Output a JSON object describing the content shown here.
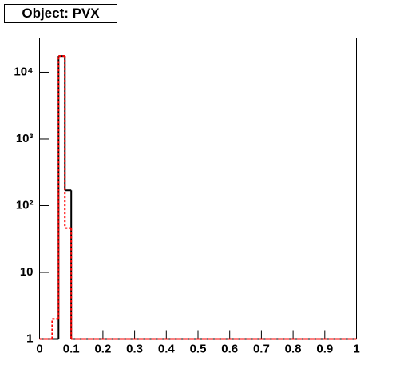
{
  "chart_data": {
    "type": "histogram",
    "title": "Object: PVX",
    "bins": [
      0,
      0.02,
      0.04,
      0.06,
      0.08,
      0.1,
      0.12,
      0.14,
      0.16,
      0.18,
      0.2,
      0.22,
      0.24,
      0.26,
      0.28,
      0.3,
      0.32,
      0.34,
      0.36,
      0.38,
      0.4,
      0.42,
      0.44,
      0.46,
      0.48,
      0.5,
      0.52,
      0.54,
      0.56,
      0.58,
      0.6,
      0.62,
      0.64,
      0.66,
      0.68,
      0.7,
      0.72,
      0.74,
      0.76,
      0.78,
      0.8,
      0.82,
      0.84,
      0.86,
      0.88,
      0.9,
      0.92,
      0.94,
      0.96,
      0.98,
      1
    ],
    "series": [
      {
        "color": "#000000",
        "dash": false,
        "values": [
          0,
          0,
          0,
          17500,
          170,
          0,
          0,
          0,
          0,
          0,
          0,
          0,
          0,
          0,
          0,
          0,
          0,
          0,
          0,
          0,
          0,
          0,
          0,
          0,
          0,
          0,
          0,
          0,
          0,
          0,
          0,
          0,
          0,
          0,
          0,
          0,
          0,
          0,
          0,
          0,
          0,
          0,
          0,
          0,
          0,
          0,
          0,
          0,
          0,
          0
        ]
      },
      {
        "color": "#ff0000",
        "dash": true,
        "values": [
          0,
          0,
          2,
          17500,
          46,
          0,
          0,
          0,
          0,
          0,
          0,
          0,
          0,
          0,
          0,
          0,
          0,
          0,
          0,
          0,
          0,
          0,
          0,
          0,
          0,
          0,
          0,
          0,
          0,
          0,
          0,
          0,
          0,
          0,
          0,
          0,
          0,
          0,
          0,
          0,
          0,
          0,
          0,
          0,
          0,
          0,
          0,
          0,
          0,
          0
        ]
      }
    ],
    "xlim": [
      0,
      1
    ],
    "xticks": [
      0,
      0.1,
      0.2,
      0.3,
      0.4,
      0.5,
      0.6,
      0.7,
      0.8,
      0.9,
      1
    ],
    "ylim": [
      1,
      32700
    ],
    "log_y": true,
    "yticks": [
      1,
      10,
      {
        "value": 100,
        "label": "10²"
      },
      {
        "value": 1000,
        "label": "10³"
      },
      {
        "value": 10000,
        "label": "10⁴"
      }
    ]
  }
}
